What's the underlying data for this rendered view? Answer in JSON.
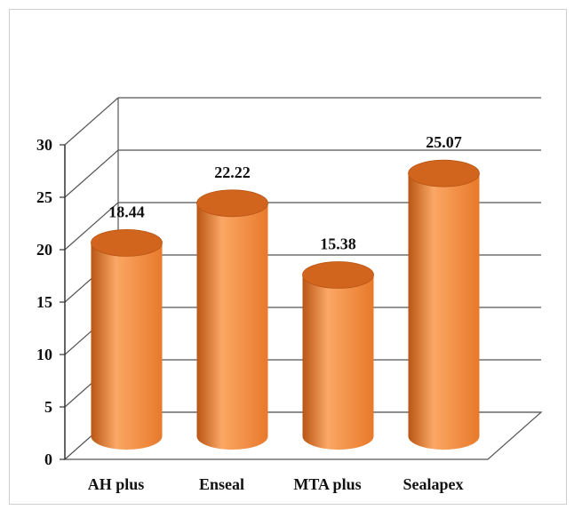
{
  "chart_data": {
    "type": "bar",
    "style": "3d-cylinder",
    "categories": [
      "AH plus",
      "Enseal",
      "MTA plus",
      "Sealapex"
    ],
    "values": [
      18.44,
      22.22,
      15.38,
      25.07
    ],
    "data_labels": [
      "18.44",
      "22.22",
      "15.38",
      "25.07"
    ],
    "ylim": [
      0,
      30
    ],
    "yticks": [
      "0",
      "5",
      "10",
      "15",
      "20",
      "25",
      "30"
    ],
    "grid": true,
    "legend": "none",
    "title": "",
    "xlabel": "",
    "ylabel": "",
    "colors": {
      "bar": "#E8792A",
      "bar_light": "#FBA765",
      "bar_dark": "#B85514",
      "bar_top": "#D2651E",
      "grid": "#555555"
    }
  }
}
